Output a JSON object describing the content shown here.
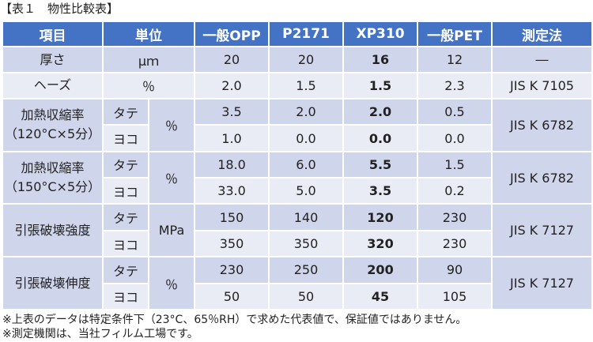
{
  "caption": "【表１　物性比較表】",
  "header": {
    "item": "項目",
    "unit": "単位",
    "col1": "一般OPP",
    "col2": "P2171",
    "col3": "XP310",
    "col4": "一般PET",
    "method": "測定法"
  },
  "rows": {
    "thickness": {
      "label": "厚さ",
      "unit": "μｍ",
      "v1": "20",
      "v2": "20",
      "v3": "16",
      "v4": "12",
      "method": "―"
    },
    "haze": {
      "label": "ヘーズ",
      "unit": "％",
      "v1": "2.0",
      "v2": "1.5",
      "v3": "1.5",
      "v4": "2.3",
      "method": "JIS K 7105"
    },
    "shrink120": {
      "label_line1": "加熱収縮率",
      "label_line2": "（120°C×5分）",
      "unit": "％",
      "method": "JIS K 6782",
      "md": {
        "dir": "タテ",
        "v1": "3.5",
        "v2": "2.0",
        "v3": "2.0",
        "v4": "0.5"
      },
      "td": {
        "dir": "ヨコ",
        "v1": "1.0",
        "v2": "0.0",
        "v3": "0.0",
        "v4": "0.0"
      }
    },
    "shrink150": {
      "label_line1": "加熱収縮率",
      "label_line2": "（150°C×5分）",
      "unit": "％",
      "method": "JIS K 6782",
      "md": {
        "dir": "タテ",
        "v1": "18.0",
        "v2": "6.0",
        "v3": "5.5",
        "v4": "1.5"
      },
      "td": {
        "dir": "ヨコ",
        "v1": "33.0",
        "v2": "5.0",
        "v3": "3.5",
        "v4": "0.2"
      }
    },
    "tensile": {
      "label": "引張破壊強度",
      "unit": "MPa",
      "method": "JIS K 7127",
      "md": {
        "dir": "タテ",
        "v1": "150",
        "v2": "140",
        "v3": "120",
        "v4": "230"
      },
      "td": {
        "dir": "ヨコ",
        "v1": "350",
        "v2": "350",
        "v3": "320",
        "v4": "230"
      }
    },
    "elongation": {
      "label": "引張破壊伸度",
      "unit": "％",
      "method": "JIS K 7127",
      "md": {
        "dir": "タテ",
        "v1": "230",
        "v2": "250",
        "v3": "200",
        "v4": "90"
      },
      "td": {
        "dir": "ヨコ",
        "v1": "50",
        "v2": "50",
        "v3": "45",
        "v4": "105"
      }
    }
  },
  "notes": [
    "※上表のデータは特定条件下（23°C、65％RH）で求めた代表値で、保証値ではありません。",
    "※測定機関は、当社フィルム工場です。"
  ]
}
